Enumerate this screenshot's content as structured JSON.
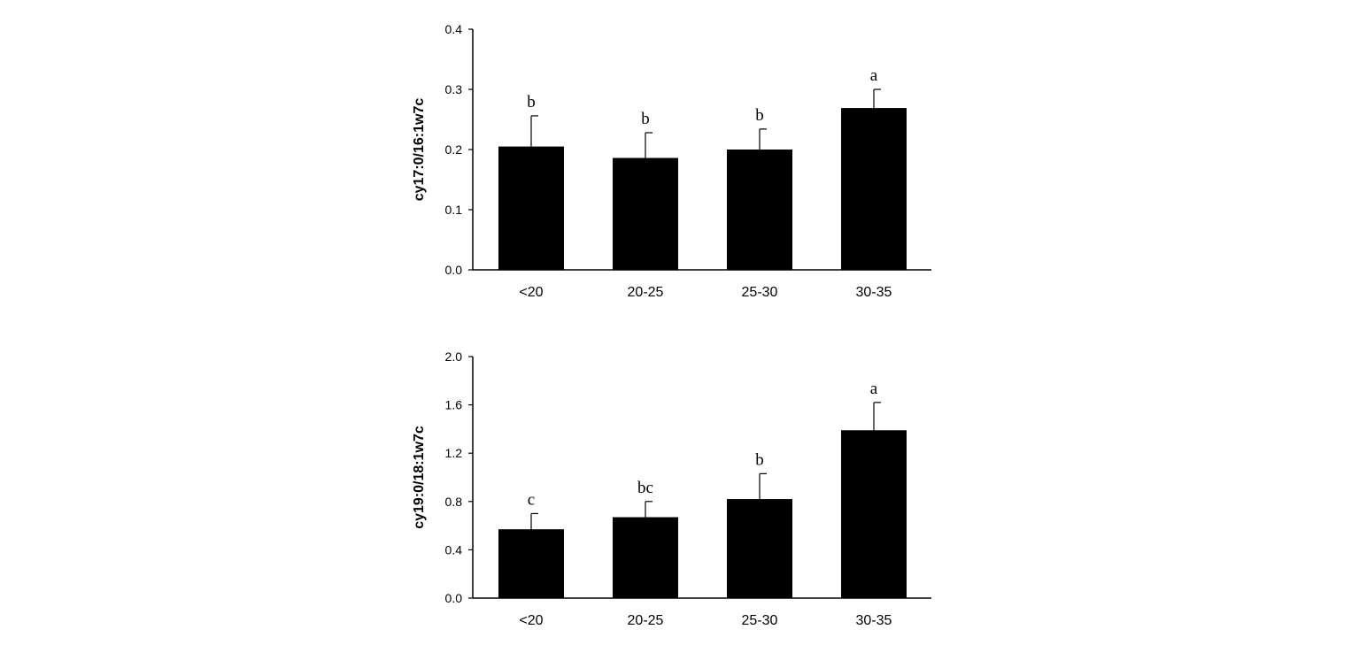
{
  "chart_data": [
    {
      "type": "bar",
      "ylabel": "cy17:0/16:1w7c",
      "categories": [
        "<20",
        "20-25",
        "25-30",
        "30-35"
      ],
      "values": [
        0.205,
        0.186,
        0.2,
        0.269
      ],
      "errors": [
        0.051,
        0.042,
        0.034,
        0.031
      ],
      "significance": [
        "b",
        "b",
        "b",
        "a"
      ],
      "ylim": [
        0,
        0.4
      ],
      "yticks": [
        "0.0",
        "0.1",
        "0.2",
        "0.3",
        "0.4"
      ],
      "ytick_values": [
        0,
        0.1,
        0.2,
        0.3,
        0.4
      ],
      "bar_color": "#000000",
      "grid": false
    },
    {
      "type": "bar",
      "ylabel": "cy19:0/18:1w7c",
      "categories": [
        "<20",
        "20-25",
        "25-30",
        "30-35"
      ],
      "values": [
        0.57,
        0.67,
        0.82,
        1.39
      ],
      "errors": [
        0.13,
        0.13,
        0.21,
        0.23
      ],
      "significance": [
        "c",
        "bc",
        "b",
        "a"
      ],
      "ylim": [
        0,
        2.0
      ],
      "yticks": [
        "0.0",
        "0.4",
        "0.8",
        "1.2",
        "1.6",
        "2.0"
      ],
      "ytick_values": [
        0,
        0.4,
        0.8,
        1.2,
        1.6,
        2.0
      ],
      "bar_color": "#000000",
      "grid": false
    }
  ]
}
